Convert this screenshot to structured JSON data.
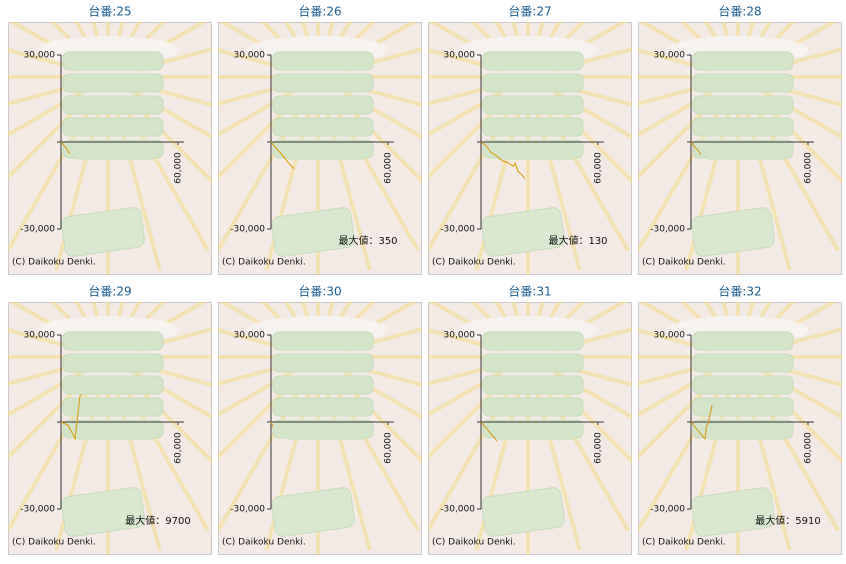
{
  "chart_data": [
    {
      "type": "line",
      "title": "台番:25",
      "x": [
        0,
        2000,
        3000,
        4600
      ],
      "series": [
        {
          "color": "#d9a21b",
          "values": [
            0,
            -1500,
            -2500,
            -4100
          ]
        }
      ],
      "xlim": [
        0,
        60000
      ],
      "ylim": [
        -30000,
        30000
      ],
      "yticks": [
        {
          "value": 30000,
          "label": "30,000"
        },
        {
          "value": -30000,
          "label": "-30,000"
        }
      ],
      "xticks": [
        {
          "value": 60000,
          "label": "60,000"
        }
      ],
      "credit": "(C) Daikoku Denki."
    },
    {
      "type": "line",
      "title": "台番:26",
      "x": [
        0,
        3000,
        6000,
        9000,
        11800
      ],
      "series": [
        {
          "color": "#d9a21b",
          "values": [
            0,
            -2400,
            -4600,
            -7200,
            -9200
          ]
        }
      ],
      "xlim": [
        0,
        60000
      ],
      "ylim": [
        -30000,
        30000
      ],
      "yticks": [
        {
          "value": 30000,
          "label": "30,000"
        },
        {
          "value": -30000,
          "label": "-30,000"
        }
      ],
      "xticks": [
        {
          "value": 60000,
          "label": "60,000"
        }
      ],
      "annotation": "最大値：350",
      "credit": "(C) Daikoku Denki."
    },
    {
      "type": "line",
      "title": "台番:27",
      "x": [
        0,
        3000,
        5000,
        8000,
        11000,
        14000,
        16500,
        17500,
        19000,
        20500,
        22500
      ],
      "series": [
        {
          "color": "#d9a21b",
          "values": [
            0,
            -1500,
            -3500,
            -4800,
            -6500,
            -7200,
            -8400,
            -7300,
            -10200,
            -11000,
            -12600
          ]
        }
      ],
      "xlim": [
        0,
        60000
      ],
      "ylim": [
        -30000,
        30000
      ],
      "yticks": [
        {
          "value": 30000,
          "label": "30,000"
        },
        {
          "value": -30000,
          "label": "-30,000"
        }
      ],
      "xticks": [
        {
          "value": 60000,
          "label": "60,000"
        }
      ],
      "annotation": "最大値：130",
      "credit": "(C) Daikoku Denki."
    },
    {
      "type": "line",
      "title": "台番:28",
      "x": [
        0,
        2000,
        3500,
        5100
      ],
      "series": [
        {
          "color": "#d9a21b",
          "values": [
            0,
            -1800,
            -2800,
            -4400
          ]
        }
      ],
      "xlim": [
        0,
        60000
      ],
      "ylim": [
        -30000,
        30000
      ],
      "yticks": [
        {
          "value": 30000,
          "label": "30,000"
        },
        {
          "value": -30000,
          "label": "-30,000"
        }
      ],
      "xticks": [
        {
          "value": 60000,
          "label": "60,000"
        }
      ],
      "credit": "(C) Daikoku Denki."
    },
    {
      "type": "line",
      "title": "台番:29",
      "x": [
        0,
        2000,
        3500,
        5000,
        7200,
        9700,
        10800
      ],
      "series": [
        {
          "color": "#d9a21b",
          "values": [
            0,
            -600,
            -1000,
            -2800,
            -5800,
            8900,
            9500
          ]
        }
      ],
      "xlim": [
        0,
        60000
      ],
      "ylim": [
        -30000,
        30000
      ],
      "yticks": [
        {
          "value": 30000,
          "label": "30,000"
        },
        {
          "value": -30000,
          "label": "-30,000"
        }
      ],
      "xticks": [
        {
          "value": 60000,
          "label": "60,000"
        }
      ],
      "annotation": "最大値：9700",
      "credit": "(C) Daikoku Denki."
    },
    {
      "type": "line",
      "title": "台番:30",
      "x": [
        0,
        1000
      ],
      "series": [
        {
          "color": "#d9a21b",
          "values": [
            0,
            -1700
          ]
        }
      ],
      "xlim": [
        0,
        60000
      ],
      "ylim": [
        -30000,
        30000
      ],
      "yticks": [
        {
          "value": 30000,
          "label": "30,000"
        },
        {
          "value": -30000,
          "label": "-30,000"
        }
      ],
      "xticks": [
        {
          "value": 60000,
          "label": "60,000"
        }
      ],
      "credit": "(C) Daikoku Denki."
    },
    {
      "type": "line",
      "title": "台番:31",
      "x": [
        0,
        2500,
        5000,
        8200
      ],
      "series": [
        {
          "color": "#d9a21b",
          "values": [
            0,
            -2000,
            -4000,
            -6500
          ]
        }
      ],
      "xlim": [
        0,
        60000
      ],
      "ylim": [
        -30000,
        30000
      ],
      "yticks": [
        {
          "value": 30000,
          "label": "30,000"
        },
        {
          "value": -30000,
          "label": "-30,000"
        }
      ],
      "xticks": [
        {
          "value": 60000,
          "label": "60,000"
        }
      ],
      "credit": "(C) Daikoku Denki."
    },
    {
      "type": "line",
      "title": "台番:32",
      "x": [
        0,
        3000,
        7200,
        8000,
        8700,
        10800
      ],
      "series": [
        {
          "color": "#d9a21b",
          "values": [
            0,
            -2500,
            -5800,
            -1200,
            -700,
            5800
          ]
        }
      ],
      "xlim": [
        0,
        60000
      ],
      "ylim": [
        -30000,
        30000
      ],
      "yticks": [
        {
          "value": 30000,
          "label": "30,000"
        },
        {
          "value": -30000,
          "label": "-30,000"
        }
      ],
      "xticks": [
        {
          "value": 60000,
          "label": "60,000"
        }
      ],
      "annotation": "最大値：5910",
      "credit": "(C) Daikoku Denki."
    }
  ]
}
